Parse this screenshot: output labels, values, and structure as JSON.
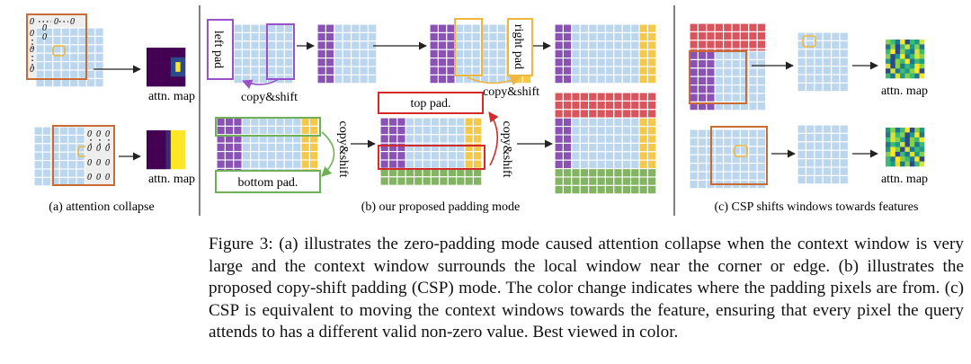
{
  "figure": {
    "panels": {
      "a": {
        "caption": "(a) attention collapse",
        "map_label": "attn. map"
      },
      "b": {
        "caption": "(b) our proposed padding mode",
        "left_pad": "left pad",
        "right_pad": "right pad",
        "top_pad": "top pad.",
        "bottom_pad": "bottom pad.",
        "copy_shift": "copy&shift"
      },
      "c": {
        "caption": "(c)  CSP shifts windows towards features",
        "map_label": "attn. map"
      }
    },
    "zero_glyph": "0",
    "colors": {
      "grid": "#bcd6ee",
      "grid_line": "#ffffff",
      "purple": "#8a52b5",
      "yellow": "#f4c84a",
      "red": "#d9545d",
      "green": "#82b462",
      "orange_box": "#c96b34",
      "violet_box": "#9a52c8",
      "yellow_box": "#efb63d",
      "red_box": "#d52a2a",
      "green_box": "#6faf57",
      "divider": "#555555"
    }
  },
  "caption": {
    "full": "Figure 3: (a) illustrates the zero-padding mode caused attention collapse when the context window is very large and the context window surrounds the local window near the corner or edge. (b) illustrates the proposed copy-shift padding (CSP) mode. The color change indicates where the padding pixels are from. (c) CSP is equivalent to moving the context windows towards the feature, ensuring that every pixel the query attends to has a different valid non-zero value. Best viewed in color."
  }
}
